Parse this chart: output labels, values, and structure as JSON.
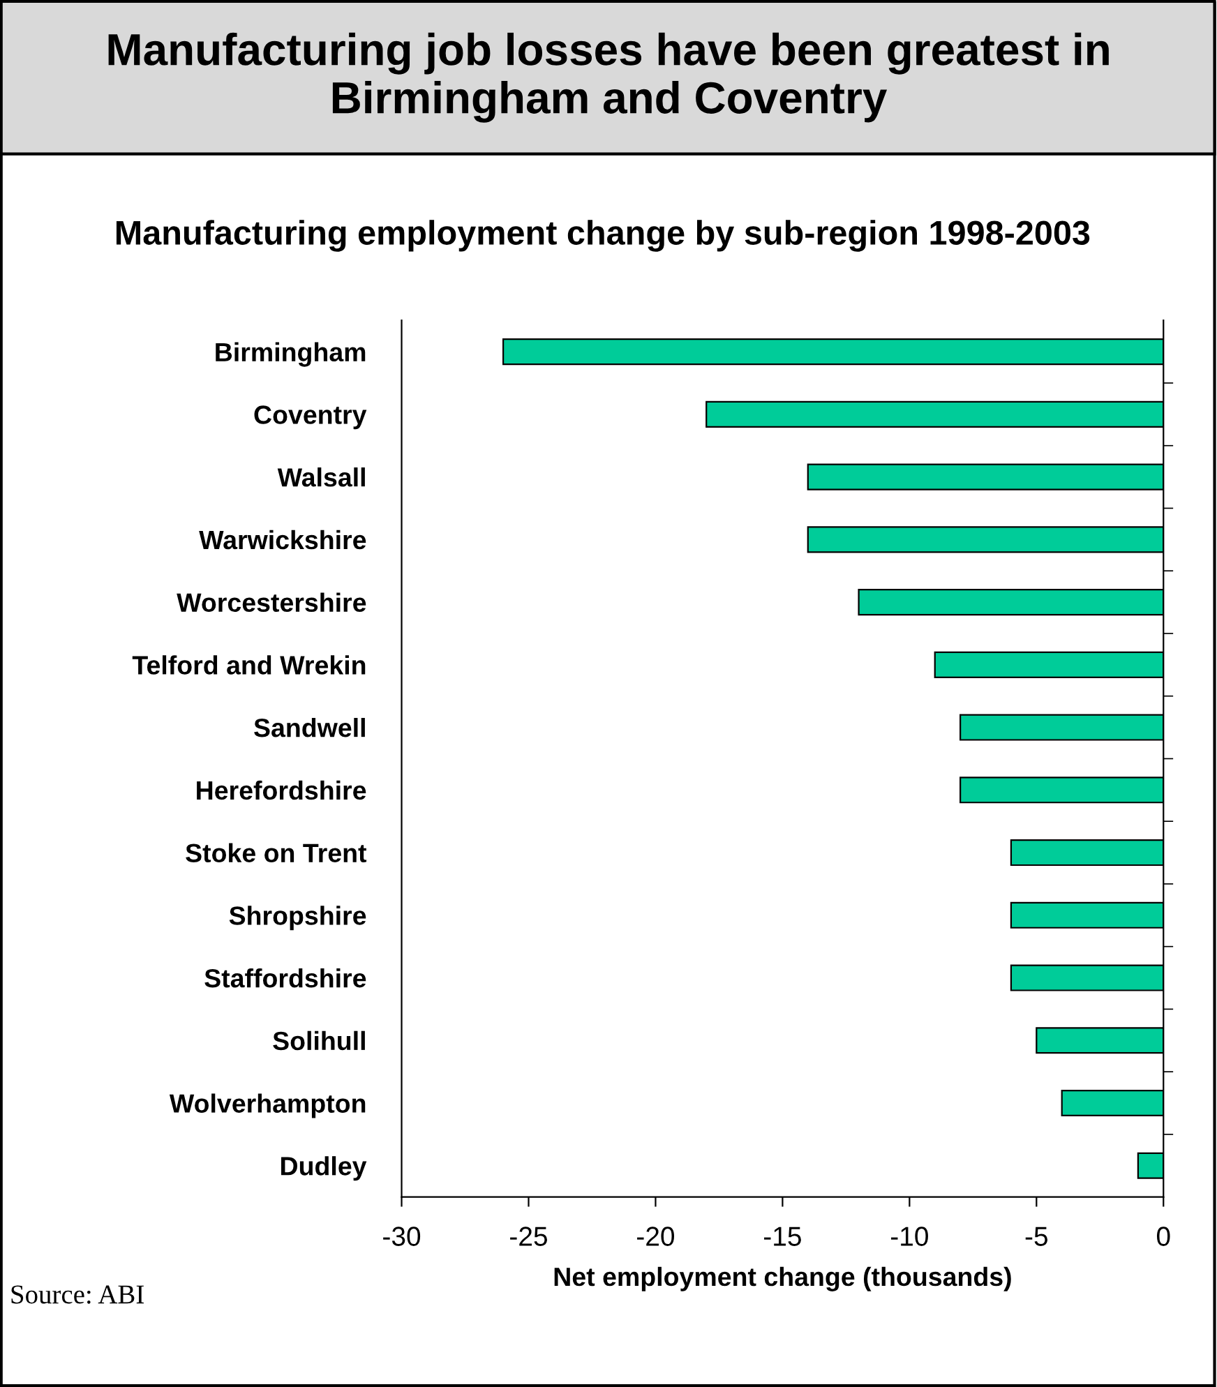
{
  "chart_data": {
    "type": "bar",
    "orientation": "horizontal",
    "title": "Manufacturing job losses have been greatest in Birmingham and Coventry",
    "subtitle": "Manufacturing employment change by sub-region 1998-2003",
    "xlabel": "Net employment change (thousands)",
    "categories": [
      "Birmingham",
      "Coventry",
      "Walsall",
      "Warwickshire",
      "Worcestershire",
      "Telford and Wrekin",
      "Sandwell",
      "Herefordshire",
      "Stoke on Trent",
      "Shropshire",
      "Staffordshire",
      "Solihull",
      "Wolverhampton",
      "Dudley"
    ],
    "values": [
      -26,
      -18,
      -14,
      -14,
      -12,
      -9,
      -8,
      -8,
      -6,
      -6,
      -6,
      -5,
      -4,
      -1
    ],
    "color": "#00cc99",
    "xlim": [
      -30,
      0
    ],
    "xticks": [
      -30,
      -25,
      -20,
      -15,
      -10,
      -5,
      0
    ],
    "grid": false,
    "annotations": [
      "Source: ABI"
    ]
  }
}
